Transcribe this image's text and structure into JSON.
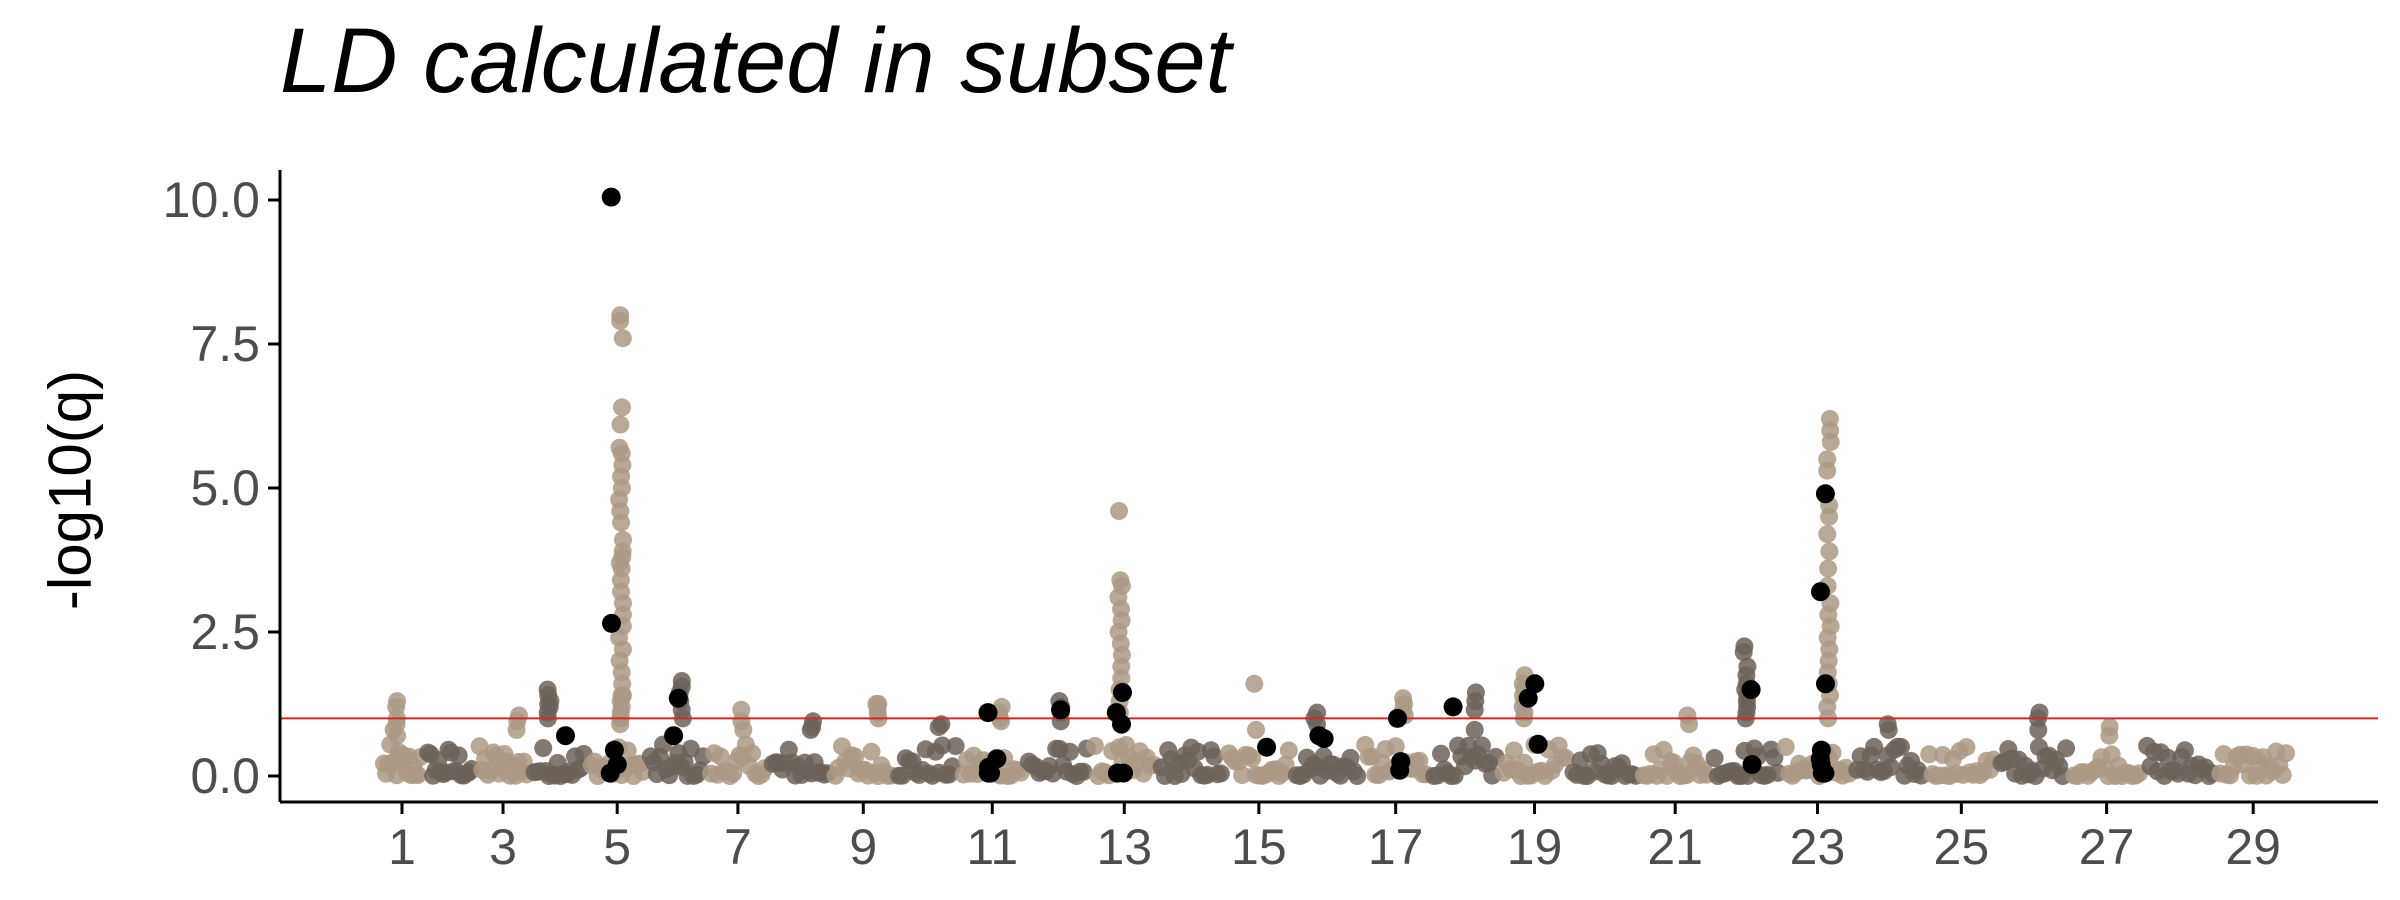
{
  "chart_data": {
    "type": "scatter",
    "title": "LD calculated in subset",
    "xlabel": "",
    "ylabel": "-log10(q)",
    "x_tick_labels": [
      "1",
      "3",
      "5",
      "7",
      "9",
      "11",
      "13",
      "15",
      "17",
      "19",
      "21",
      "23",
      "25",
      "27",
      "29"
    ],
    "y_ticks": [
      "0.0",
      "2.5",
      "5.0",
      "7.5",
      "10.0"
    ],
    "ylim": [
      -0.45,
      10.45
    ],
    "threshold": 1.0,
    "chromosomes": [
      {
        "chr": 1,
        "color": "light"
      },
      {
        "chr": 2,
        "color": "dark"
      },
      {
        "chr": 3,
        "color": "light"
      },
      {
        "chr": 4,
        "color": "dark"
      },
      {
        "chr": 5,
        "color": "light"
      },
      {
        "chr": 6,
        "color": "dark"
      },
      {
        "chr": 7,
        "color": "light"
      },
      {
        "chr": 8,
        "color": "dark"
      },
      {
        "chr": 9,
        "color": "light"
      },
      {
        "chr": 10,
        "color": "dark"
      },
      {
        "chr": 11,
        "color": "light"
      },
      {
        "chr": 12,
        "color": "dark"
      },
      {
        "chr": 13,
        "color": "light"
      },
      {
        "chr": 14,
        "color": "dark"
      },
      {
        "chr": 15,
        "color": "light"
      },
      {
        "chr": 16,
        "color": "dark"
      },
      {
        "chr": 17,
        "color": "light"
      },
      {
        "chr": 18,
        "color": "dark"
      },
      {
        "chr": 19,
        "color": "light"
      },
      {
        "chr": 20,
        "color": "dark"
      },
      {
        "chr": 21,
        "color": "light"
      },
      {
        "chr": 22,
        "color": "dark"
      },
      {
        "chr": 23,
        "color": "light"
      },
      {
        "chr": 24,
        "color": "dark"
      },
      {
        "chr": 25,
        "color": "light"
      },
      {
        "chr": 26,
        "color": "dark"
      },
      {
        "chr": 27,
        "color": "light"
      },
      {
        "chr": 28,
        "color": "dark"
      },
      {
        "chr": 29,
        "color": "light"
      }
    ],
    "peaks": [
      {
        "chr": 1,
        "values": [
          1.3,
          1.2,
          1.0,
          0.9,
          0.8,
          0.7
        ]
      },
      {
        "chr": 3,
        "values": [
          1.05,
          0.95,
          0.8
        ]
      },
      {
        "chr": 4,
        "values": [
          1.5,
          1.4,
          1.3,
          1.25,
          1.2,
          1.1,
          1.0
        ]
      },
      {
        "chr": 5,
        "values": [
          1.4,
          1.3,
          1.1,
          1.0,
          8.0,
          7.9,
          7.6,
          6.4,
          6.1,
          5.7,
          5.6,
          5.4,
          5.2,
          5.0,
          4.8,
          4.6,
          4.4,
          4.1,
          3.9,
          3.8,
          3.7,
          3.6,
          3.4,
          3.2,
          3.0,
          2.8,
          2.6,
          2.4,
          2.2,
          2.0,
          1.8,
          1.6,
          1.4,
          1.2,
          1.0,
          0.9,
          1.4
        ]
      },
      {
        "chr": 6,
        "values": [
          1.65,
          1.55,
          1.45,
          1.3,
          1.15,
          1.0
        ]
      },
      {
        "chr": 7,
        "values": [
          1.15,
          0.95,
          0.8
        ]
      },
      {
        "chr": 8,
        "values": [
          0.95,
          0.85,
          0.8
        ]
      },
      {
        "chr": 9,
        "values": [
          1.25,
          1.2,
          1.1,
          1.25,
          1.0
        ]
      },
      {
        "chr": 10,
        "values": [
          0.9,
          0.85
        ]
      },
      {
        "chr": 11,
        "values": [
          1.2,
          1.1,
          1.0,
          0.95
        ]
      },
      {
        "chr": 12,
        "values": [
          0.95,
          1.3,
          1.2,
          1.1
        ]
      },
      {
        "chr": 13,
        "values": [
          4.6,
          3.4,
          3.3,
          3.1,
          2.9,
          2.7,
          2.5,
          2.3,
          2.1,
          1.9,
          1.7,
          1.5,
          1.3,
          1.1
        ]
      },
      {
        "chr": 15,
        "values": [
          1.6,
          0.8
        ]
      },
      {
        "chr": 16,
        "values": [
          1.1,
          1.0,
          0.9
        ]
      },
      {
        "chr": 17,
        "values": [
          1.35,
          1.25,
          1.15,
          1.05
        ]
      },
      {
        "chr": 18,
        "values": [
          1.45,
          1.3,
          1.15,
          0.8
        ]
      },
      {
        "chr": 19,
        "values": [
          1.75,
          1.6,
          1.5,
          1.4,
          1.3,
          1.2,
          1.1,
          1.0
        ]
      },
      {
        "chr": 21,
        "values": [
          1.05,
          0.9
        ]
      },
      {
        "chr": 22,
        "values": [
          2.25,
          2.15,
          1.9,
          1.75,
          1.6,
          1.5,
          1.4,
          1.3,
          1.2,
          1.1,
          1.0
        ]
      },
      {
        "chr": 23,
        "values": [
          6.2,
          6.0,
          5.8,
          5.5,
          5.3,
          4.7,
          4.5,
          4.2,
          3.9,
          3.6,
          3.3,
          3.0,
          2.8,
          2.6,
          2.4,
          2.2,
          2.0,
          1.8,
          1.6,
          1.4,
          1.2,
          1.0
        ]
      },
      {
        "chr": 24,
        "values": [
          0.9,
          0.8
        ]
      },
      {
        "chr": 26,
        "values": [
          1.1,
          1.0,
          0.8
        ]
      },
      {
        "chr": 27,
        "values": [
          0.85,
          0.7
        ]
      }
    ],
    "highlighted": [
      {
        "chr": 5,
        "values": [
          10.05,
          2.65,
          0.45,
          0.2,
          0.05
        ]
      },
      {
        "chr": 4,
        "values": [
          0.7
        ]
      },
      {
        "chr": 6,
        "values": [
          1.35,
          0.7
        ]
      },
      {
        "chr": 11,
        "values": [
          1.1,
          0.3,
          0.15,
          0.05,
          0.05
        ]
      },
      {
        "chr": 12,
        "values": [
          1.15
        ]
      },
      {
        "chr": 13,
        "values": [
          1.45,
          1.1,
          0.9,
          0.05,
          0.05
        ]
      },
      {
        "chr": 15,
        "values": [
          0.5
        ]
      },
      {
        "chr": 16,
        "values": [
          0.7
        ]
      },
      {
        "chr": 16,
        "values": [
          0.65
        ]
      },
      {
        "chr": 17,
        "values": [
          1.0,
          0.25,
          0.1
        ]
      },
      {
        "chr": 18,
        "values": [
          1.2
        ]
      },
      {
        "chr": 19,
        "values": [
          1.6,
          1.35
        ]
      },
      {
        "chr": 19,
        "values": [
          0.55
        ]
      },
      {
        "chr": 22,
        "values": [
          1.5,
          0.2
        ]
      },
      {
        "chr": 23,
        "values": [
          4.9,
          3.2,
          1.6,
          0.45,
          0.3,
          0.2,
          0.05,
          0.05
        ]
      }
    ],
    "colors": {
      "light": "#aa9985",
      "dark": "#6b6259",
      "highlight": "#000000",
      "threshold_line": "#d62728",
      "axis": "#000000",
      "tick_text": "#4d4d4d"
    }
  }
}
